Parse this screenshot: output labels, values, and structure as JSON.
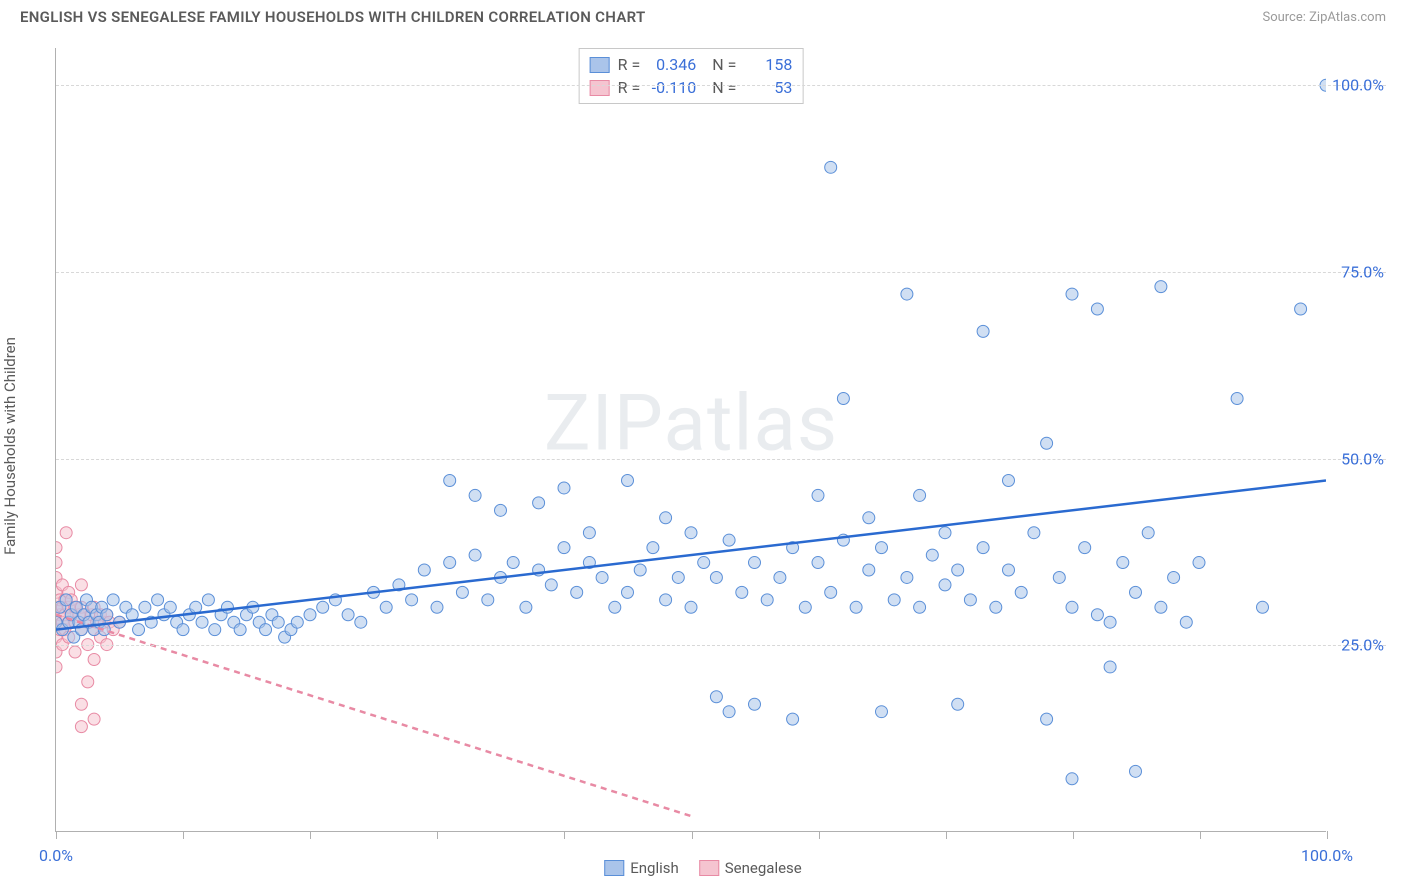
{
  "header": {
    "title": "ENGLISH VS SENEGALESE FAMILY HOUSEHOLDS WITH CHILDREN CORRELATION CHART",
    "source": "Source: ZipAtlas.com"
  },
  "chart": {
    "type": "scatter",
    "ylabel": "Family Households with Children",
    "watermark": "ZIPatlas",
    "xlim": [
      0,
      100
    ],
    "ylim": [
      0,
      105
    ],
    "xtick_positions": [
      0,
      10,
      20,
      30,
      40,
      50,
      60,
      70,
      80,
      90,
      100
    ],
    "xtick_labels": {
      "0": "0.0%",
      "100": "100.0%"
    },
    "ytick_positions": [
      25,
      50,
      75,
      100
    ],
    "ytick_labels": {
      "25": "25.0%",
      "50": "50.0%",
      "75": "75.0%",
      "100": "100.0%"
    },
    "grid_color": "#d8d8d8",
    "axis_color": "#b0b0b0",
    "background_color": "#ffffff",
    "label_color": "#5a5a5a",
    "tick_label_color": "#3a6fd8",
    "marker_radius": 6,
    "marker_opacity": 0.55,
    "regression_linewidth": 2.5
  },
  "series": {
    "english": {
      "label": "English",
      "fill_color": "#aac4ea",
      "stroke_color": "#5a8fd8",
      "regression_color": "#2a6ad0",
      "regression": {
        "x1": 0,
        "y1": 27,
        "x2": 100,
        "y2": 47,
        "dash": false
      },
      "R": "0.346",
      "N": "158",
      "points": [
        [
          0,
          28
        ],
        [
          0.3,
          30
        ],
        [
          0.5,
          27
        ],
        [
          0.8,
          31
        ],
        [
          1,
          28
        ],
        [
          1.2,
          29
        ],
        [
          1.4,
          26
        ],
        [
          1.6,
          30
        ],
        [
          1.8,
          28
        ],
        [
          2,
          27
        ],
        [
          2.2,
          29
        ],
        [
          2.4,
          31
        ],
        [
          2.6,
          28
        ],
        [
          2.8,
          30
        ],
        [
          3,
          27
        ],
        [
          3.2,
          29
        ],
        [
          3.4,
          28
        ],
        [
          3.6,
          30
        ],
        [
          3.8,
          27
        ],
        [
          4,
          29
        ],
        [
          4.5,
          31
        ],
        [
          5,
          28
        ],
        [
          5.5,
          30
        ],
        [
          6,
          29
        ],
        [
          6.5,
          27
        ],
        [
          7,
          30
        ],
        [
          7.5,
          28
        ],
        [
          8,
          31
        ],
        [
          8.5,
          29
        ],
        [
          9,
          30
        ],
        [
          9.5,
          28
        ],
        [
          10,
          27
        ],
        [
          10.5,
          29
        ],
        [
          11,
          30
        ],
        [
          11.5,
          28
        ],
        [
          12,
          31
        ],
        [
          12.5,
          27
        ],
        [
          13,
          29
        ],
        [
          13.5,
          30
        ],
        [
          14,
          28
        ],
        [
          14.5,
          27
        ],
        [
          15,
          29
        ],
        [
          15.5,
          30
        ],
        [
          16,
          28
        ],
        [
          16.5,
          27
        ],
        [
          17,
          29
        ],
        [
          17.5,
          28
        ],
        [
          18,
          26
        ],
        [
          18.5,
          27
        ],
        [
          19,
          28
        ],
        [
          20,
          29
        ],
        [
          21,
          30
        ],
        [
          22,
          31
        ],
        [
          23,
          29
        ],
        [
          24,
          28
        ],
        [
          25,
          32
        ],
        [
          26,
          30
        ],
        [
          27,
          33
        ],
        [
          28,
          31
        ],
        [
          29,
          35
        ],
        [
          30,
          30
        ],
        [
          31,
          36
        ],
        [
          31,
          47
        ],
        [
          32,
          32
        ],
        [
          33,
          37
        ],
        [
          33,
          45
        ],
        [
          34,
          31
        ],
        [
          35,
          34
        ],
        [
          35,
          43
        ],
        [
          36,
          36
        ],
        [
          37,
          30
        ],
        [
          38,
          35
        ],
        [
          38,
          44
        ],
        [
          39,
          33
        ],
        [
          40,
          38
        ],
        [
          40,
          46
        ],
        [
          41,
          32
        ],
        [
          42,
          36
        ],
        [
          42,
          40
        ],
        [
          43,
          34
        ],
        [
          44,
          30
        ],
        [
          45,
          32
        ],
        [
          45,
          47
        ],
        [
          46,
          35
        ],
        [
          47,
          38
        ],
        [
          48,
          31
        ],
        [
          48,
          42
        ],
        [
          49,
          34
        ],
        [
          50,
          30
        ],
        [
          50,
          40
        ],
        [
          51,
          36
        ],
        [
          52,
          18
        ],
        [
          52,
          34
        ],
        [
          53,
          16
        ],
        [
          53,
          39
        ],
        [
          54,
          32
        ],
        [
          55,
          17
        ],
        [
          55,
          36
        ],
        [
          56,
          31
        ],
        [
          57,
          34
        ],
        [
          58,
          15
        ],
        [
          58,
          38
        ],
        [
          59,
          30
        ],
        [
          60,
          36
        ],
        [
          60,
          45
        ],
        [
          61,
          89
        ],
        [
          61,
          32
        ],
        [
          62,
          39
        ],
        [
          62,
          58
        ],
        [
          63,
          30
        ],
        [
          64,
          35
        ],
        [
          64,
          42
        ],
        [
          65,
          16
        ],
        [
          65,
          38
        ],
        [
          66,
          31
        ],
        [
          67,
          34
        ],
        [
          67,
          72
        ],
        [
          68,
          30
        ],
        [
          68,
          45
        ],
        [
          69,
          37
        ],
        [
          70,
          33
        ],
        [
          70,
          40
        ],
        [
          71,
          17
        ],
        [
          71,
          35
        ],
        [
          72,
          31
        ],
        [
          73,
          38
        ],
        [
          73,
          67
        ],
        [
          74,
          30
        ],
        [
          75,
          35
        ],
        [
          75,
          47
        ],
        [
          76,
          32
        ],
        [
          77,
          40
        ],
        [
          78,
          15
        ],
        [
          78,
          52
        ],
        [
          79,
          34
        ],
        [
          80,
          30
        ],
        [
          80,
          72
        ],
        [
          80,
          7
        ],
        [
          81,
          38
        ],
        [
          82,
          29
        ],
        [
          82,
          70
        ],
        [
          83,
          28
        ],
        [
          83,
          22
        ],
        [
          84,
          36
        ],
        [
          85,
          32
        ],
        [
          85,
          8
        ],
        [
          86,
          40
        ],
        [
          87,
          30
        ],
        [
          87,
          73
        ],
        [
          88,
          34
        ],
        [
          89,
          28
        ],
        [
          90,
          36
        ],
        [
          93,
          58
        ],
        [
          95,
          30
        ],
        [
          98,
          70
        ],
        [
          100,
          100
        ]
      ]
    },
    "senegalese": {
      "label": "Senegalese",
      "fill_color": "#f5c4d0",
      "stroke_color": "#e88aa4",
      "regression_color": "#e88aa4",
      "regression": {
        "x1": 0,
        "y1": 29,
        "x2": 50,
        "y2": 2,
        "dash": true
      },
      "R": "-0.110",
      "N": "53",
      "points": [
        [
          0,
          28
        ],
        [
          0,
          30
        ],
        [
          0,
          32
        ],
        [
          0,
          26
        ],
        [
          0,
          34
        ],
        [
          0,
          24
        ],
        [
          0,
          36
        ],
        [
          0,
          22
        ],
        [
          0,
          38
        ],
        [
          0.3,
          29
        ],
        [
          0.3,
          31
        ],
        [
          0.3,
          27
        ],
        [
          0.5,
          30
        ],
        [
          0.5,
          28
        ],
        [
          0.5,
          33
        ],
        [
          0.5,
          25
        ],
        [
          0.7,
          29
        ],
        [
          0.7,
          31
        ],
        [
          0.7,
          27
        ],
        [
          0.8,
          40
        ],
        [
          1,
          30
        ],
        [
          1,
          28
        ],
        [
          1,
          32
        ],
        [
          1,
          26
        ],
        [
          1.2,
          29
        ],
        [
          1.2,
          31
        ],
        [
          1.5,
          30
        ],
        [
          1.5,
          28
        ],
        [
          1.5,
          24
        ],
        [
          1.8,
          29
        ],
        [
          2,
          30
        ],
        [
          2,
          27
        ],
        [
          2,
          33
        ],
        [
          2,
          17
        ],
        [
          2,
          14
        ],
        [
          2.2,
          29
        ],
        [
          2.5,
          28
        ],
        [
          2.5,
          25
        ],
        [
          2.5,
          20
        ],
        [
          2.8,
          29
        ],
        [
          3,
          30
        ],
        [
          3,
          27
        ],
        [
          3,
          23
        ],
        [
          3,
          15
        ],
        [
          3.2,
          28
        ],
        [
          3.5,
          29
        ],
        [
          3.5,
          26
        ],
        [
          3.8,
          28
        ],
        [
          4,
          29
        ],
        [
          4,
          25
        ],
        [
          4.2,
          28
        ],
        [
          4.5,
          27
        ],
        [
          5,
          28
        ]
      ]
    }
  },
  "legend": {
    "items": [
      "english",
      "senegalese"
    ]
  }
}
